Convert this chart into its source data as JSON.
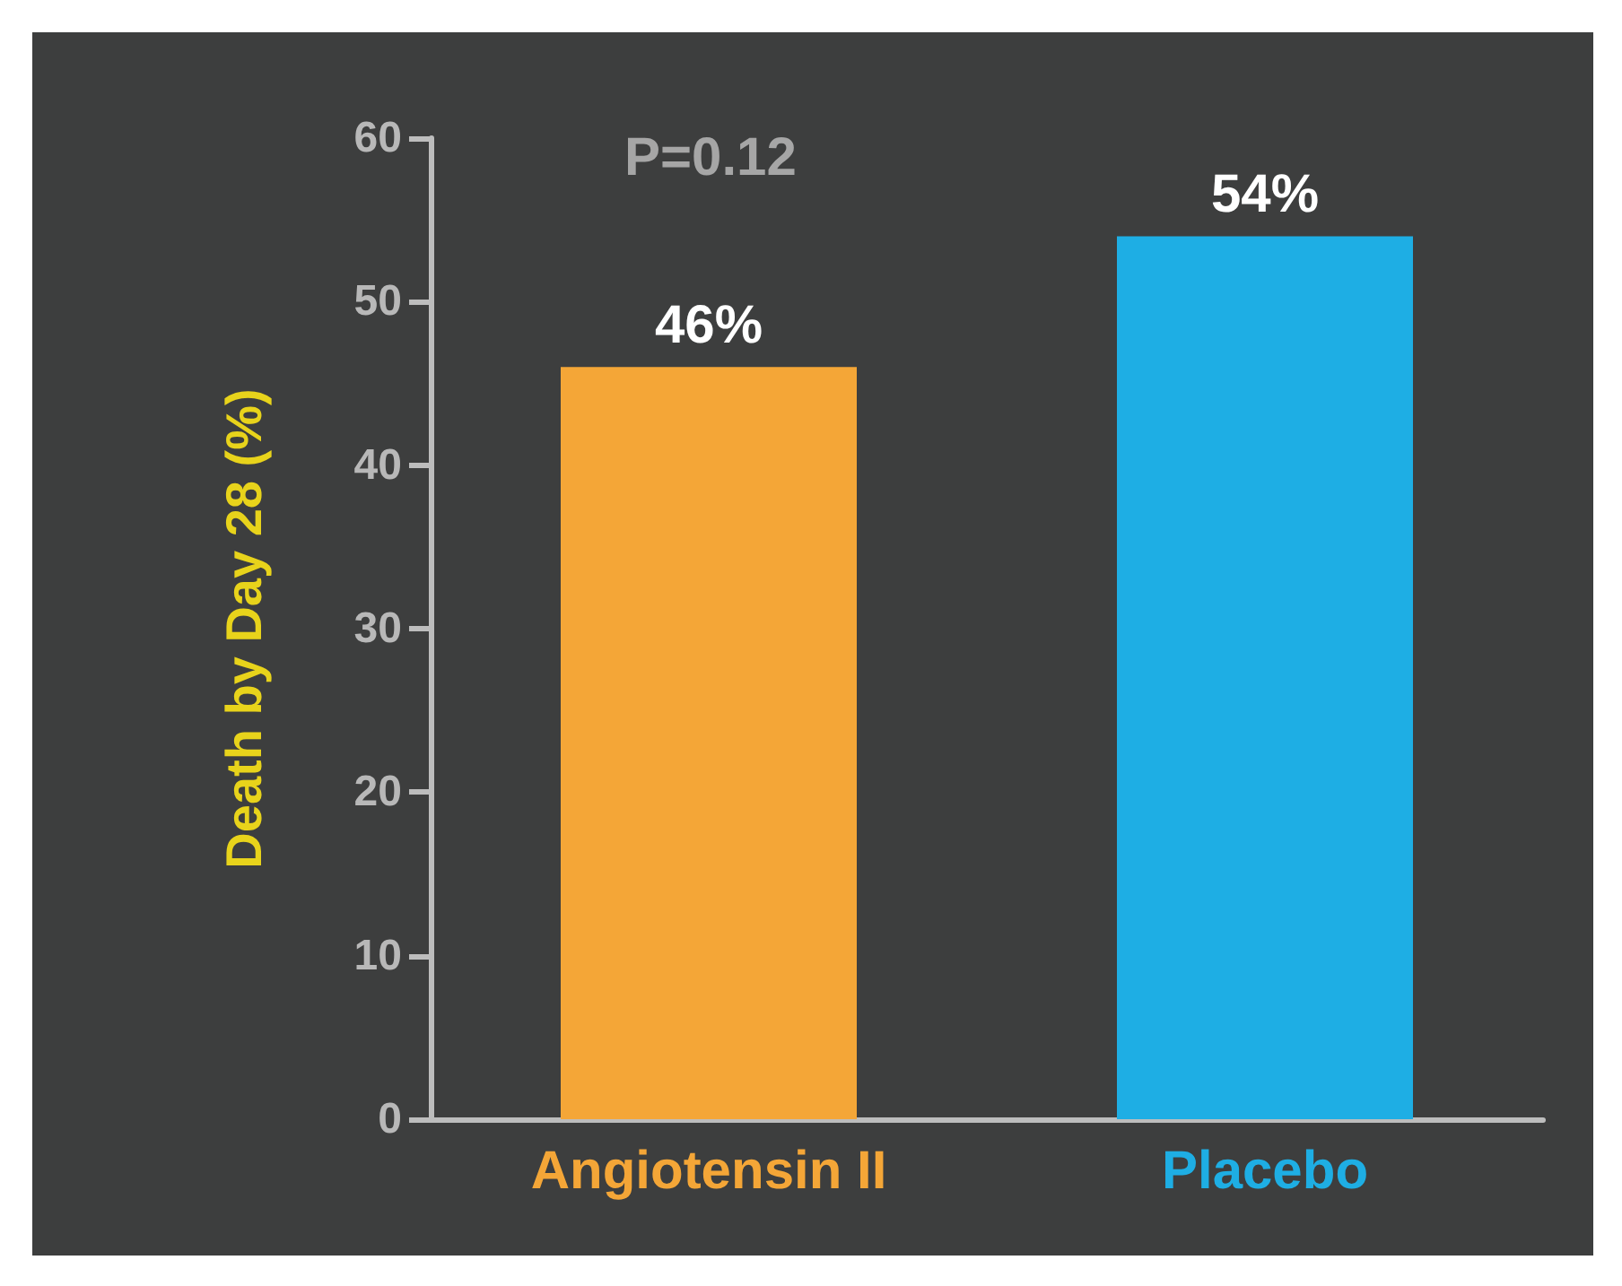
{
  "chart_data": {
    "type": "bar",
    "ylabel": "Death by Day 28 (%)",
    "categories": [
      "Angiotensin II",
      "Placebo"
    ],
    "values": [
      46,
      54
    ],
    "colors": [
      "#f4a637",
      "#1eaee4"
    ],
    "ylim": [
      0,
      60
    ],
    "yticks": [
      0,
      10,
      20,
      30,
      40,
      50,
      60
    ],
    "value_labels": [
      "46%",
      "54%"
    ],
    "annotations": [
      "P=0.12"
    ],
    "grid": false
  }
}
